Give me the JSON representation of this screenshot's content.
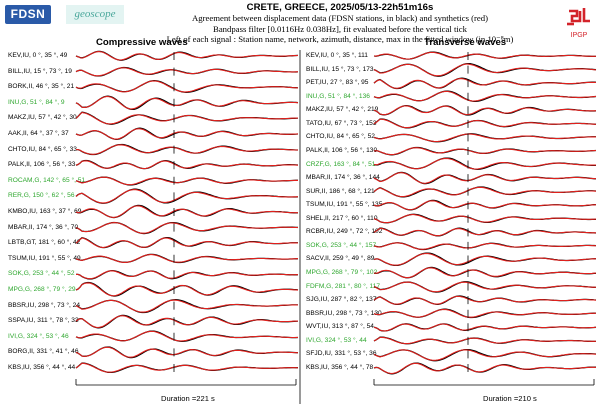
{
  "logos": {
    "fdsn": "FDSN",
    "geoscope": "geoscope",
    "ipgp": "IPGP",
    "ipgp_color": "#d3232a"
  },
  "header": {
    "title": "CRETE, GREECE, 2025/05/13-22h51m16s",
    "line1": "Agreement between displacement data (FDSN stations, in black) and synthetics (red)",
    "line2": "Bandpass filter [0.0116Hz 0.038Hz], fit evaluated before the vertical tick",
    "line3": "Left of each signal : Station name, network, azimuth, distance, max in the fitted window (in 10⁻⁸m)"
  },
  "panels": [
    {
      "title": "Compressive waves",
      "duration": "Duration =221 s",
      "stations": [
        {
          "label": "KEV,IU, 0 °, 35 °, 49",
          "green": false
        },
        {
          "label": "BILL,IU, 15 °, 73 °, 19",
          "green": false
        },
        {
          "label": "BORK,II, 46 °, 35 °, 21",
          "green": false
        },
        {
          "label": "INU,G, 51 °, 84 °, 9",
          "green": true
        },
        {
          "label": "MAKZ,IU, 57 °, 42 °, 30",
          "green": false
        },
        {
          "label": "AAK,II, 64 °, 37 °, 37",
          "green": false
        },
        {
          "label": "CHTO,IU, 84 °, 65 °, 33",
          "green": false
        },
        {
          "label": "PALK,II, 106 °, 56 °, 33",
          "green": false
        },
        {
          "label": "ROCAM,G, 142 °, 65 °, 51",
          "green": true
        },
        {
          "label": "RER,G, 150 °, 62 °, 56",
          "green": true
        },
        {
          "label": "KMBO,IU, 163 °, 37 °, 69",
          "green": false
        },
        {
          "label": "MBAR,II, 174 °, 36 °, 70",
          "green": false
        },
        {
          "label": "LBTB,GT, 181 °, 60 °, 42",
          "green": false
        },
        {
          "label": "TSUM,IU, 191 °, 55 °, 49",
          "green": false
        },
        {
          "label": "SOK,G, 253 °, 44 °, 52",
          "green": true
        },
        {
          "label": "MPG,G, 268 °, 79 °, 29",
          "green": true
        },
        {
          "label": "BBSR,IU, 298 °, 73 °, 24",
          "green": false
        },
        {
          "label": "SSPA,IU, 311 °, 78 °, 33",
          "green": false
        },
        {
          "label": "IVI,G, 324 °, 53 °, 46",
          "green": true
        },
        {
          "label": "BORG,II, 331 °, 41 °, 46",
          "green": false
        },
        {
          "label": "KBS,IU, 356 °, 44 °, 44",
          "green": false
        }
      ]
    },
    {
      "title": "Transverse waves",
      "duration": "Duration =210 s",
      "stations": [
        {
          "label": "KEV,IU, 0 °, 35 °, 111",
          "green": false
        },
        {
          "label": "BILL,IU, 15 °, 73 °, 173",
          "green": false
        },
        {
          "label": "PET,IU, 27 °, 83 °, 95",
          "green": false
        },
        {
          "label": "INU,G, 51 °, 84 °, 136",
          "green": true
        },
        {
          "label": "MAKZ,IU, 57 °, 42 °, 219",
          "green": false
        },
        {
          "label": "TATO,IU, 67 °, 73 °, 153",
          "green": false
        },
        {
          "label": "CHTO,IU, 84 °, 65 °, 52",
          "green": false
        },
        {
          "label": "PALK,II, 106 °, 56 °, 130",
          "green": false
        },
        {
          "label": "CRZF,G, 163 °, 84 °, 51",
          "green": true
        },
        {
          "label": "MBAR,II, 174 °, 36 °, 144",
          "green": false
        },
        {
          "label": "SUR,II, 186 °, 68 °, 121",
          "green": false
        },
        {
          "label": "TSUM,IU, 191 °, 55 °, 135",
          "green": false
        },
        {
          "label": "SHEL,II, 217 °, 60 °, 110",
          "green": false
        },
        {
          "label": "RCBR,IU, 249 °, 72 °, 102",
          "green": false
        },
        {
          "label": "SOK,G, 253 °, 44 °, 157",
          "green": true
        },
        {
          "label": "SACV,II, 259 °, 49 °, 89",
          "green": false
        },
        {
          "label": "MPG,G, 268 °, 79 °, 102",
          "green": true
        },
        {
          "label": "FDFM,G, 281 °, 80 °, 117",
          "green": true
        },
        {
          "label": "SJG,IU, 287 °, 82 °, 137",
          "green": false
        },
        {
          "label": "BBSR,IU, 298 °, 73 °, 130",
          "green": false
        },
        {
          "label": "WVT,IU, 313 °, 87 °, 54",
          "green": false
        },
        {
          "label": "IVI,G, 324 °, 53 °, 44",
          "green": true
        },
        {
          "label": "SFJD,IU, 331 °, 53 °, 36",
          "green": false
        },
        {
          "label": "KBS,IU, 356 °, 44 °, 78",
          "green": false
        }
      ]
    }
  ]
}
